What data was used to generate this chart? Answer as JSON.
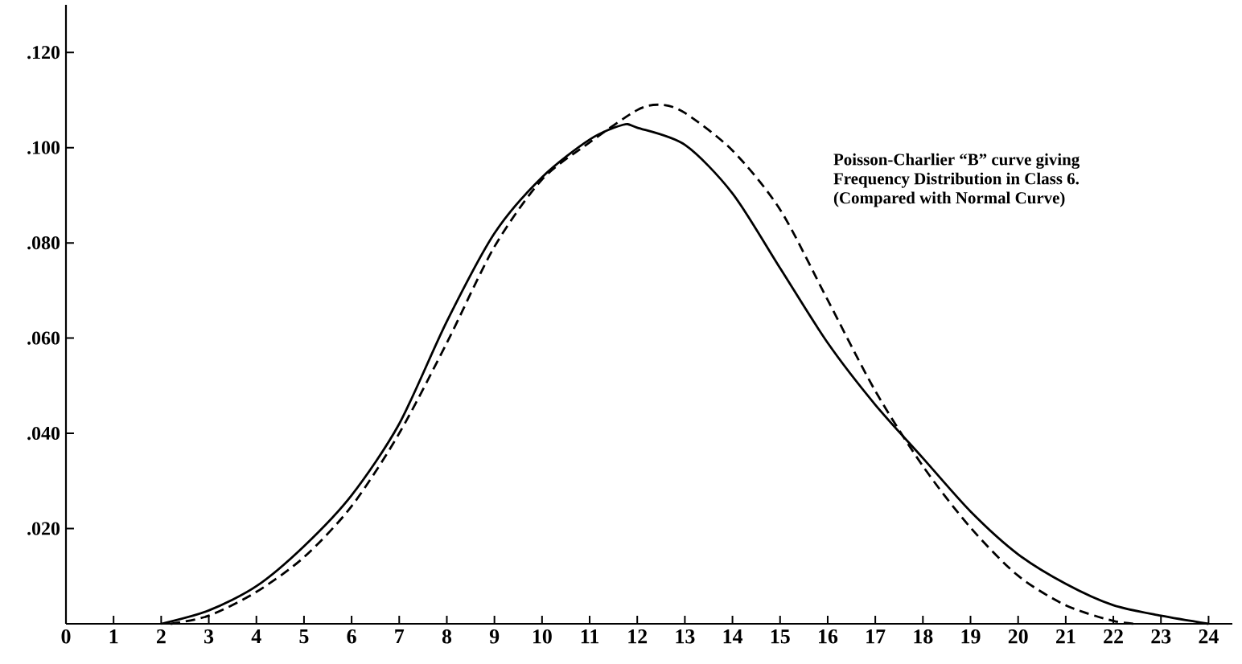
{
  "chart_data": {
    "type": "line",
    "annotations": [
      "Poisson-Charlier “B” curve giving",
      "Frequency Distribution in Class 6.",
      "(Compared with Normal Curve)"
    ],
    "xlim": [
      0,
      24.5
    ],
    "ylim": [
      0,
      0.13
    ],
    "xticks": [
      0,
      1,
      2,
      3,
      4,
      5,
      6,
      7,
      8,
      9,
      10,
      11,
      12,
      13,
      14,
      15,
      16,
      17,
      18,
      19,
      20,
      21,
      22,
      23,
      24
    ],
    "yticks": [
      {
        "value": 0.02,
        "label": ".020"
      },
      {
        "value": 0.04,
        "label": ".040"
      },
      {
        "value": 0.06,
        "label": ".060"
      },
      {
        "value": 0.08,
        "label": ".080"
      },
      {
        "value": 0.1,
        "label": ".100"
      },
      {
        "value": 0.12,
        "label": ".120"
      }
    ],
    "grid": false,
    "series": [
      {
        "color": "#000000",
        "line_style": "solid",
        "x": [
          2,
          3,
          4,
          5,
          6,
          7,
          8,
          9,
          10,
          11,
          11.7,
          12,
          13,
          14,
          15,
          16,
          17,
          18,
          19,
          20,
          21,
          22,
          23,
          24
        ],
        "values": [
          0,
          0.0028,
          0.0079,
          0.0163,
          0.027,
          0.042,
          0.0635,
          0.082,
          0.0938,
          0.1017,
          0.1048,
          0.1042,
          0.1006,
          0.0904,
          0.0747,
          0.059,
          0.046,
          0.0348,
          0.0236,
          0.0146,
          0.0084,
          0.0039,
          0.0017,
          0
        ]
      },
      {
        "color": "#000000",
        "line_style": "dashed",
        "x": [
          2.2,
          3,
          4,
          5,
          6,
          7,
          8,
          9,
          10,
          11,
          12,
          12.5,
          13,
          14,
          15,
          16,
          17,
          18,
          19,
          20,
          21,
          22,
          22.5
        ],
        "values": [
          0,
          0.0017,
          0.0067,
          0.014,
          0.0247,
          0.04,
          0.059,
          0.0792,
          0.0933,
          0.1011,
          0.1079,
          0.109,
          0.1073,
          0.0994,
          0.087,
          0.068,
          0.0489,
          0.0331,
          0.0202,
          0.0101,
          0.0039,
          0.0006,
          0
        ]
      }
    ]
  }
}
